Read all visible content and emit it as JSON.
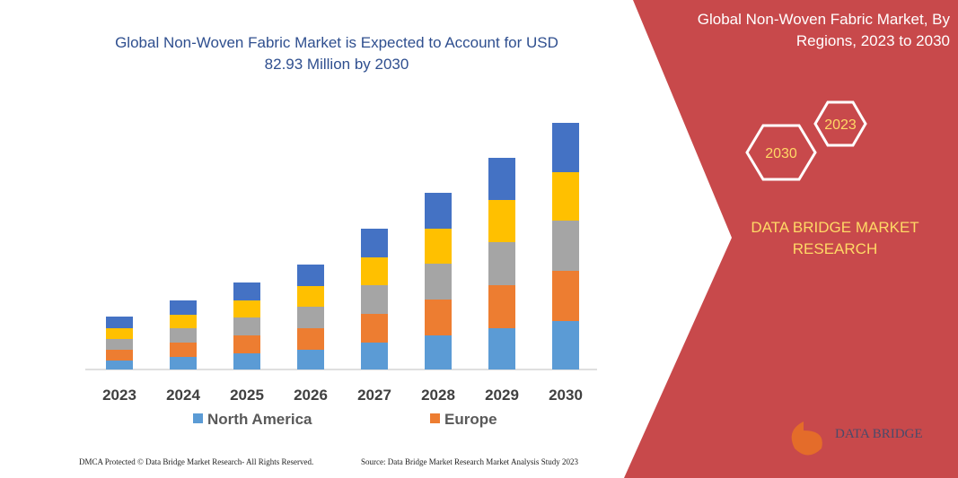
{
  "chart_data": {
    "type": "stacked-bar",
    "title": "Global Non-Woven Fabric Market is Expected to Account for USD 82.93 Million by 2030",
    "categories": [
      "2023",
      "2024",
      "2025",
      "2026",
      "2027",
      "2028",
      "2029",
      "2030"
    ],
    "series": [
      {
        "name": "North America",
        "color": "#5b9bd5",
        "values": [
          10,
          14,
          18,
          22,
          30,
          38,
          46,
          54
        ]
      },
      {
        "name": "Europe",
        "color": "#ed7d31",
        "values": [
          12,
          16,
          20,
          24,
          32,
          40,
          48,
          56
        ]
      },
      {
        "color": "#a5a5a5",
        "values": [
          12,
          16,
          20,
          24,
          32,
          40,
          48,
          56
        ]
      },
      {
        "color": "#ffc000",
        "values": [
          12,
          15,
          19,
          23,
          31,
          39,
          47,
          54
        ]
      },
      {
        "color": "#4472c4",
        "values": [
          13,
          16,
          20,
          24,
          32,
          40,
          47,
          55
        ]
      }
    ]
  },
  "panel": {
    "title": "Global Non-Woven Fabric Market, By Regions, 2023 to 2030",
    "hex_labels": [
      "2023",
      "2030"
    ],
    "brand": "DATA BRIDGE MARKET RESEARCH"
  },
  "footer": {
    "left": "DMCA Protected © Data Bridge Market Research- All Rights Reserved.",
    "right": "Source: Data Bridge Market Research Market Analysis Study 2023"
  },
  "logo": "DATA BRIDGE"
}
